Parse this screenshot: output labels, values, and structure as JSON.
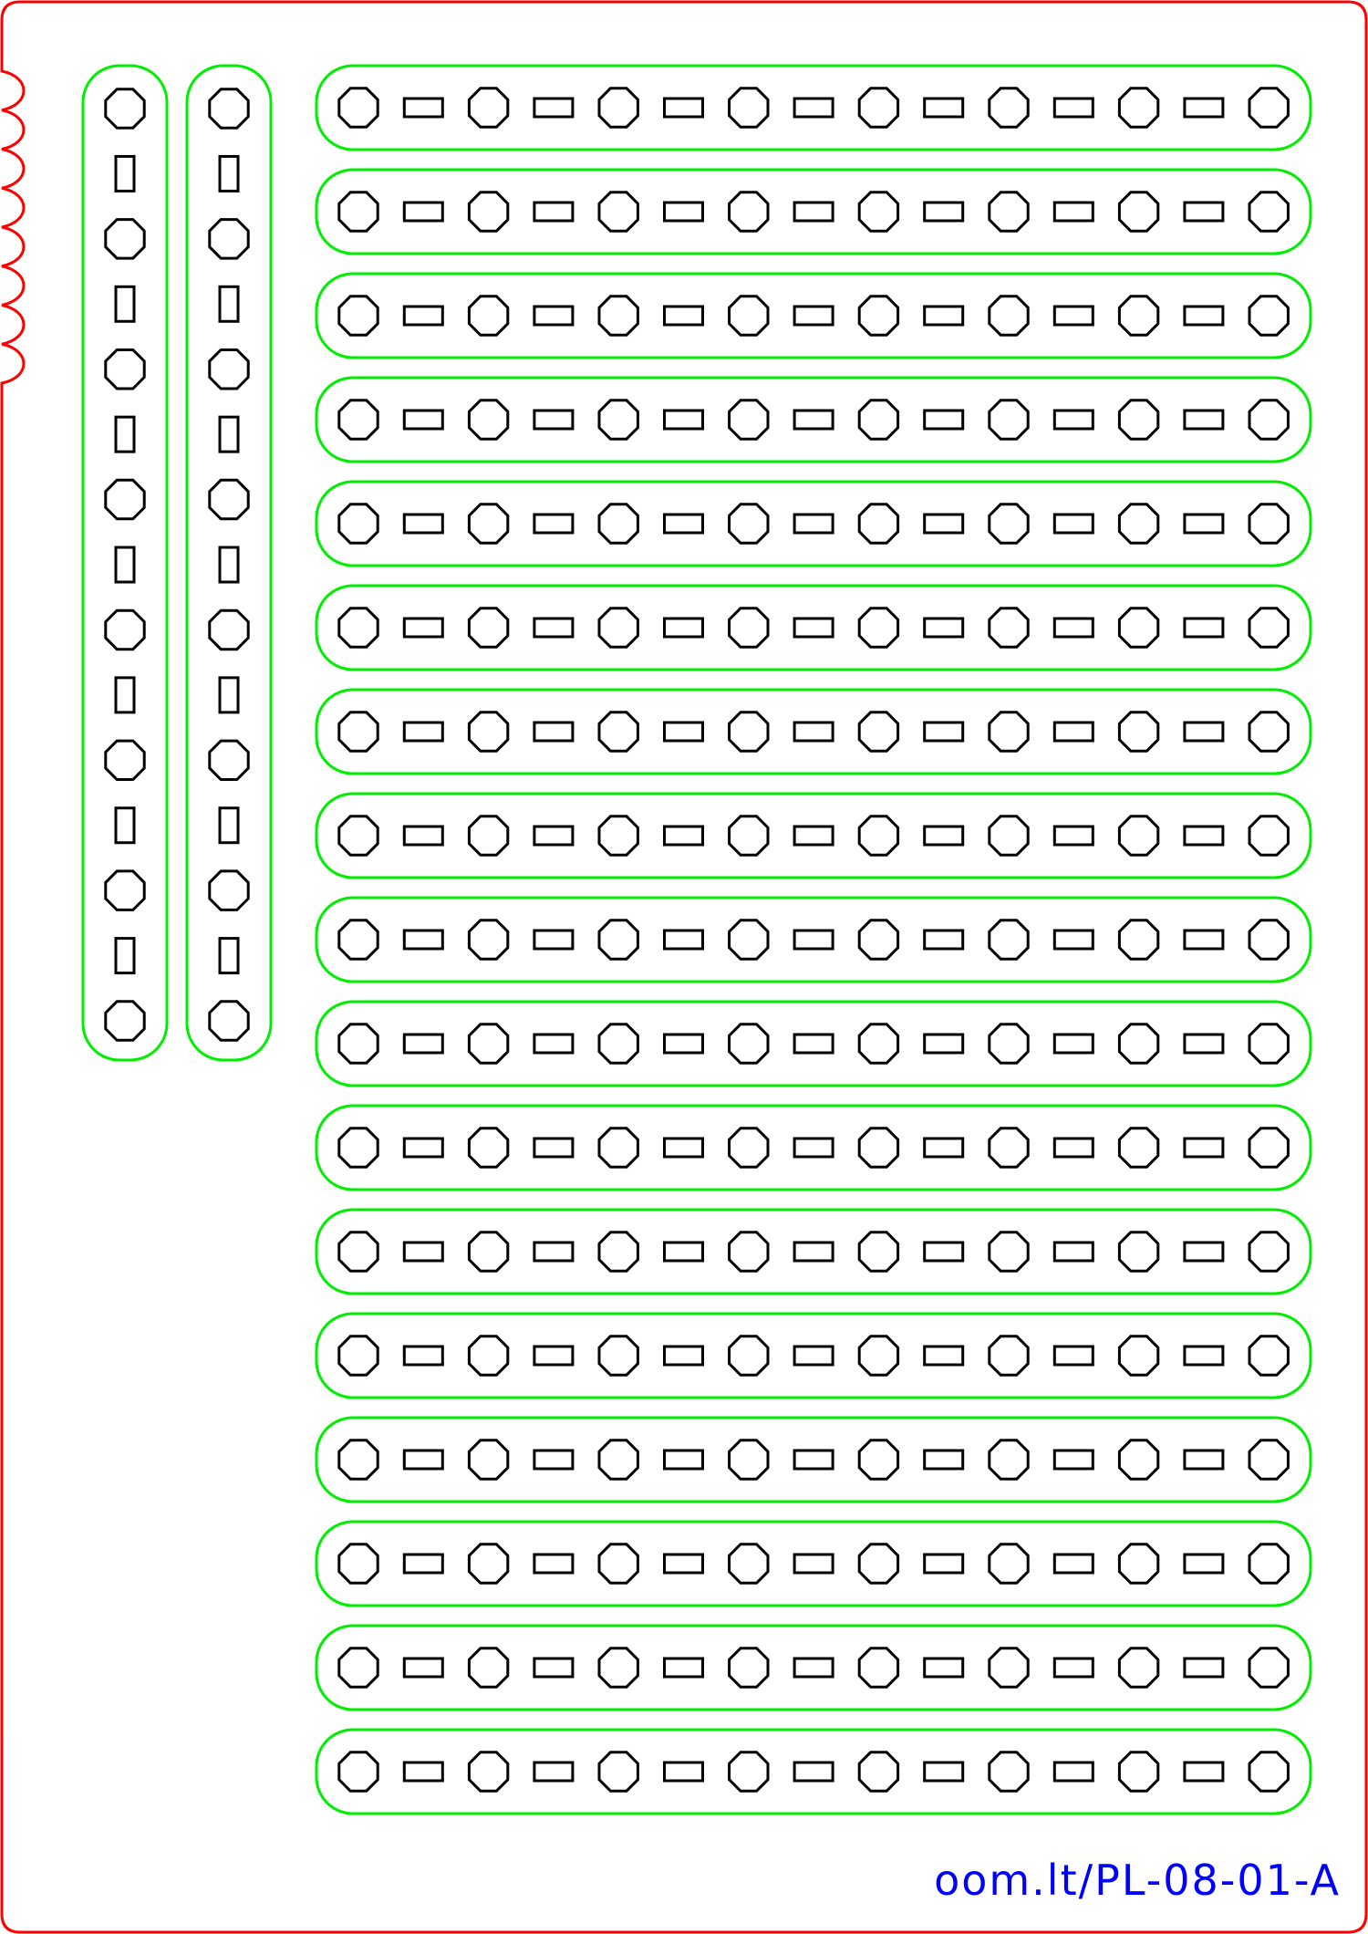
{
  "label": "oom.lt/PL-08-01-A",
  "colors": {
    "outline": "#ff0000",
    "strip": "#00ee00",
    "hole": "#000000",
    "label": "#0000ff"
  },
  "icons": {
    "round_hole": "octagon",
    "slot_hole": "rectangle"
  },
  "vertical_strips": {
    "count": 2,
    "round_holes_per_strip": 8,
    "slot_holes_per_strip": 7
  },
  "horizontal_strips": {
    "count": 17,
    "round_holes_per_strip": 8,
    "slot_holes_per_strip": 7
  }
}
